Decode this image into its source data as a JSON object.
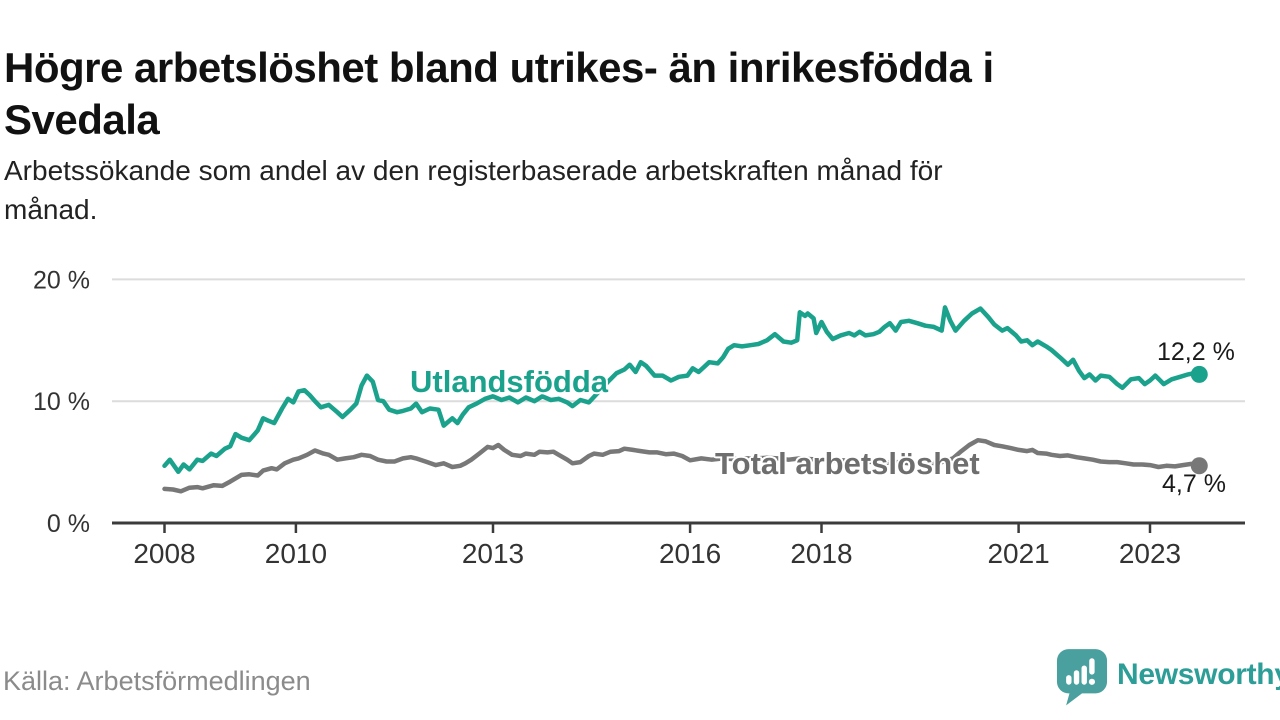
{
  "header": {
    "title": "Högre arbetslöshet bland utrikes- än inrikesfödda i Svedala",
    "title_lines": [
      "Högre arbetslöshet bland utrikes- än inrikesfödda i",
      "Svedala"
    ],
    "subtitle": "Arbetssökande som andel av den registerbaserade arbetskraften månad för månad.",
    "subtitle_lines": [
      "Arbetssökande som andel av den registerbaserade arbetskraften månad för",
      "månad."
    ]
  },
  "footer": {
    "source": "Källa: Arbetsförmedlingen",
    "brand": "Newsworthy",
    "logo_icon": "newsworthy-speech-bubble-bar-chart"
  },
  "colors": {
    "teal_line": "#1ba28c",
    "gray_line": "#787878",
    "axis": "#3b3b3b",
    "gridline": "#dcdcdc",
    "tick_label": "#333333",
    "value_label": "#1a1a1a",
    "series_label_gray": "#6e6e6e",
    "source_text": "#8b8b8b",
    "logo_teal": "#4aa09e",
    "brand_text": "#2c9d97"
  },
  "chart_data": {
    "type": "line",
    "title": "Högre arbetslöshet bland utrikes- än inrikesfödda i Svedala",
    "subtitle": "Arbetssökande som andel av den registerbaserade arbetskraften månad för månad.",
    "x_unit": "decimal_year_monthly",
    "y_unit": "percent",
    "x_range": [
      2008,
      2023.75
    ],
    "y_range": [
      0,
      21.3
    ],
    "grid": "horizontal_only",
    "legend": "inline_labels_on_lines",
    "x_ticks": [
      {
        "value": 2008,
        "label": "2008"
      },
      {
        "value": 2010,
        "label": "2010"
      },
      {
        "value": 2013,
        "label": "2013"
      },
      {
        "value": 2016,
        "label": "2016"
      },
      {
        "value": 2018,
        "label": "2018"
      },
      {
        "value": 2021,
        "label": "2021"
      },
      {
        "value": 2023,
        "label": "2023"
      }
    ],
    "y_ticks": [
      {
        "value": 0,
        "label": "0 %"
      },
      {
        "value": 10,
        "label": "10 %"
      },
      {
        "value": 20,
        "label": "20 %"
      }
    ],
    "series": [
      {
        "name": "Utlandsfödda",
        "color": "#1ba28c",
        "end_label": "12,2 %",
        "end_value": 12.2,
        "points": [
          [
            2008.0,
            4.7
          ],
          [
            2008.08,
            5.2
          ],
          [
            2008.21,
            4.2
          ],
          [
            2008.29,
            4.8
          ],
          [
            2008.38,
            4.4
          ],
          [
            2008.5,
            5.2
          ],
          [
            2008.58,
            5.1
          ],
          [
            2008.71,
            5.7
          ],
          [
            2008.79,
            5.5
          ],
          [
            2008.92,
            6.1
          ],
          [
            2009.0,
            6.3
          ],
          [
            2009.08,
            7.3
          ],
          [
            2009.17,
            7.0
          ],
          [
            2009.29,
            6.8
          ],
          [
            2009.42,
            7.6
          ],
          [
            2009.5,
            8.6
          ],
          [
            2009.58,
            8.4
          ],
          [
            2009.67,
            8.2
          ],
          [
            2009.79,
            9.4
          ],
          [
            2009.88,
            10.2
          ],
          [
            2009.96,
            9.9
          ],
          [
            2010.04,
            10.8
          ],
          [
            2010.13,
            10.9
          ],
          [
            2010.21,
            10.5
          ],
          [
            2010.29,
            10.0
          ],
          [
            2010.38,
            9.5
          ],
          [
            2010.5,
            9.7
          ],
          [
            2010.63,
            9.1
          ],
          [
            2010.71,
            8.7
          ],
          [
            2010.83,
            9.3
          ],
          [
            2010.92,
            9.8
          ],
          [
            2011.0,
            11.3
          ],
          [
            2011.08,
            12.1
          ],
          [
            2011.17,
            11.6
          ],
          [
            2011.25,
            10.1
          ],
          [
            2011.33,
            10.0
          ],
          [
            2011.42,
            9.3
          ],
          [
            2011.54,
            9.1
          ],
          [
            2011.63,
            9.2
          ],
          [
            2011.75,
            9.4
          ],
          [
            2011.83,
            9.8
          ],
          [
            2011.92,
            9.1
          ],
          [
            2012.04,
            9.4
          ],
          [
            2012.17,
            9.3
          ],
          [
            2012.25,
            8.0
          ],
          [
            2012.38,
            8.6
          ],
          [
            2012.46,
            8.2
          ],
          [
            2012.54,
            8.9
          ],
          [
            2012.63,
            9.5
          ],
          [
            2012.75,
            9.8
          ],
          [
            2012.88,
            10.2
          ],
          [
            2013.0,
            10.4
          ],
          [
            2013.13,
            10.1
          ],
          [
            2013.25,
            10.3
          ],
          [
            2013.38,
            9.9
          ],
          [
            2013.5,
            10.3
          ],
          [
            2013.63,
            10.0
          ],
          [
            2013.75,
            10.4
          ],
          [
            2013.88,
            10.1
          ],
          [
            2014.0,
            10.2
          ],
          [
            2014.13,
            9.9
          ],
          [
            2014.21,
            9.6
          ],
          [
            2014.33,
            10.1
          ],
          [
            2014.46,
            9.9
          ],
          [
            2014.58,
            10.6
          ],
          [
            2014.75,
            11.6
          ],
          [
            2014.88,
            12.3
          ],
          [
            2015.0,
            12.6
          ],
          [
            2015.08,
            13.0
          ],
          [
            2015.17,
            12.4
          ],
          [
            2015.25,
            13.2
          ],
          [
            2015.33,
            12.9
          ],
          [
            2015.46,
            12.1
          ],
          [
            2015.58,
            12.1
          ],
          [
            2015.71,
            11.7
          ],
          [
            2015.83,
            12.0
          ],
          [
            2015.96,
            12.1
          ],
          [
            2016.04,
            12.7
          ],
          [
            2016.13,
            12.4
          ],
          [
            2016.21,
            12.8
          ],
          [
            2016.29,
            13.2
          ],
          [
            2016.42,
            13.1
          ],
          [
            2016.5,
            13.6
          ],
          [
            2016.58,
            14.3
          ],
          [
            2016.67,
            14.6
          ],
          [
            2016.79,
            14.5
          ],
          [
            2016.92,
            14.6
          ],
          [
            2017.04,
            14.7
          ],
          [
            2017.17,
            15.0
          ],
          [
            2017.29,
            15.5
          ],
          [
            2017.42,
            14.9
          ],
          [
            2017.54,
            14.8
          ],
          [
            2017.63,
            15.0
          ],
          [
            2017.67,
            17.3
          ],
          [
            2017.75,
            17.0
          ],
          [
            2017.79,
            17.2
          ],
          [
            2017.88,
            16.8
          ],
          [
            2017.92,
            15.6
          ],
          [
            2018.0,
            16.5
          ],
          [
            2018.08,
            15.7
          ],
          [
            2018.17,
            15.1
          ],
          [
            2018.29,
            15.4
          ],
          [
            2018.42,
            15.6
          ],
          [
            2018.5,
            15.4
          ],
          [
            2018.58,
            15.7
          ],
          [
            2018.67,
            15.4
          ],
          [
            2018.79,
            15.5
          ],
          [
            2018.88,
            15.7
          ],
          [
            2018.96,
            16.1
          ],
          [
            2019.04,
            16.4
          ],
          [
            2019.13,
            15.8
          ],
          [
            2019.21,
            16.5
          ],
          [
            2019.33,
            16.6
          ],
          [
            2019.46,
            16.4
          ],
          [
            2019.58,
            16.2
          ],
          [
            2019.71,
            16.1
          ],
          [
            2019.83,
            15.8
          ],
          [
            2019.88,
            17.7
          ],
          [
            2019.96,
            16.6
          ],
          [
            2020.04,
            15.8
          ],
          [
            2020.17,
            16.6
          ],
          [
            2020.29,
            17.2
          ],
          [
            2020.42,
            17.6
          ],
          [
            2020.54,
            16.9
          ],
          [
            2020.63,
            16.3
          ],
          [
            2020.75,
            15.8
          ],
          [
            2020.83,
            16.0
          ],
          [
            2020.96,
            15.4
          ],
          [
            2021.04,
            14.9
          ],
          [
            2021.13,
            15.0
          ],
          [
            2021.21,
            14.6
          ],
          [
            2021.29,
            14.9
          ],
          [
            2021.42,
            14.5
          ],
          [
            2021.5,
            14.2
          ],
          [
            2021.63,
            13.6
          ],
          [
            2021.75,
            13.0
          ],
          [
            2021.83,
            13.4
          ],
          [
            2021.92,
            12.5
          ],
          [
            2022.0,
            11.9
          ],
          [
            2022.08,
            12.2
          ],
          [
            2022.17,
            11.7
          ],
          [
            2022.25,
            12.1
          ],
          [
            2022.38,
            12.0
          ],
          [
            2022.5,
            11.4
          ],
          [
            2022.58,
            11.1
          ],
          [
            2022.71,
            11.8
          ],
          [
            2022.83,
            11.9
          ],
          [
            2022.92,
            11.4
          ],
          [
            2023.0,
            11.7
          ],
          [
            2023.08,
            12.1
          ],
          [
            2023.21,
            11.4
          ],
          [
            2023.33,
            11.8
          ],
          [
            2023.46,
            12.0
          ],
          [
            2023.58,
            12.2
          ],
          [
            2023.67,
            12.3
          ],
          [
            2023.75,
            12.2
          ]
        ]
      },
      {
        "name": "Total arbetslöshet",
        "color": "#787878",
        "end_label": "4,7 %",
        "end_value": 4.7,
        "points": [
          [
            2008.0,
            2.8
          ],
          [
            2008.13,
            2.75
          ],
          [
            2008.25,
            2.6
          ],
          [
            2008.38,
            2.9
          ],
          [
            2008.5,
            2.95
          ],
          [
            2008.58,
            2.85
          ],
          [
            2008.75,
            3.1
          ],
          [
            2008.88,
            3.05
          ],
          [
            2009.0,
            3.4
          ],
          [
            2009.17,
            3.95
          ],
          [
            2009.29,
            4.0
          ],
          [
            2009.42,
            3.9
          ],
          [
            2009.5,
            4.3
          ],
          [
            2009.63,
            4.5
          ],
          [
            2009.71,
            4.4
          ],
          [
            2009.83,
            4.9
          ],
          [
            2009.96,
            5.2
          ],
          [
            2010.04,
            5.3
          ],
          [
            2010.17,
            5.6
          ],
          [
            2010.29,
            5.95
          ],
          [
            2010.42,
            5.7
          ],
          [
            2010.5,
            5.6
          ],
          [
            2010.63,
            5.2
          ],
          [
            2010.75,
            5.3
          ],
          [
            2010.88,
            5.4
          ],
          [
            2011.0,
            5.6
          ],
          [
            2011.13,
            5.5
          ],
          [
            2011.25,
            5.2
          ],
          [
            2011.38,
            5.05
          ],
          [
            2011.5,
            5.05
          ],
          [
            2011.63,
            5.3
          ],
          [
            2011.75,
            5.4
          ],
          [
            2011.83,
            5.3
          ],
          [
            2012.0,
            5.0
          ],
          [
            2012.13,
            4.75
          ],
          [
            2012.25,
            4.9
          ],
          [
            2012.38,
            4.6
          ],
          [
            2012.5,
            4.7
          ],
          [
            2012.58,
            4.9
          ],
          [
            2012.67,
            5.2
          ],
          [
            2012.79,
            5.7
          ],
          [
            2012.92,
            6.25
          ],
          [
            2013.0,
            6.15
          ],
          [
            2013.08,
            6.4
          ],
          [
            2013.17,
            6.0
          ],
          [
            2013.29,
            5.6
          ],
          [
            2013.42,
            5.5
          ],
          [
            2013.5,
            5.7
          ],
          [
            2013.63,
            5.6
          ],
          [
            2013.71,
            5.85
          ],
          [
            2013.83,
            5.8
          ],
          [
            2013.92,
            5.85
          ],
          [
            2014.0,
            5.6
          ],
          [
            2014.13,
            5.2
          ],
          [
            2014.21,
            4.9
          ],
          [
            2014.33,
            5.0
          ],
          [
            2014.46,
            5.5
          ],
          [
            2014.54,
            5.7
          ],
          [
            2014.67,
            5.6
          ],
          [
            2014.79,
            5.85
          ],
          [
            2014.92,
            5.9
          ],
          [
            2015.0,
            6.1
          ],
          [
            2015.13,
            6.0
          ],
          [
            2015.25,
            5.9
          ],
          [
            2015.38,
            5.8
          ],
          [
            2015.5,
            5.8
          ],
          [
            2015.63,
            5.65
          ],
          [
            2015.75,
            5.7
          ],
          [
            2015.88,
            5.5
          ],
          [
            2016.0,
            5.15
          ],
          [
            2016.17,
            5.3
          ],
          [
            2016.33,
            5.2
          ],
          [
            2016.5,
            5.3
          ],
          [
            2016.67,
            5.25
          ],
          [
            2016.83,
            5.3
          ],
          [
            2017.0,
            5.3
          ],
          [
            2017.17,
            5.35
          ],
          [
            2017.33,
            5.3
          ],
          [
            2017.5,
            5.2
          ],
          [
            2017.67,
            5.3
          ],
          [
            2017.83,
            5.25
          ],
          [
            2018.0,
            5.2
          ],
          [
            2018.17,
            5.1
          ],
          [
            2018.33,
            5.15
          ],
          [
            2018.5,
            5.05
          ],
          [
            2018.67,
            5.0
          ],
          [
            2018.83,
            5.05
          ],
          [
            2019.0,
            4.95
          ],
          [
            2019.17,
            5.0
          ],
          [
            2019.33,
            4.9
          ],
          [
            2019.5,
            4.85
          ],
          [
            2019.67,
            4.9
          ],
          [
            2019.83,
            5.0
          ],
          [
            2020.0,
            5.3
          ],
          [
            2020.13,
            5.9
          ],
          [
            2020.25,
            6.4
          ],
          [
            2020.38,
            6.8
          ],
          [
            2020.5,
            6.7
          ],
          [
            2020.63,
            6.4
          ],
          [
            2020.75,
            6.3
          ],
          [
            2020.88,
            6.15
          ],
          [
            2021.0,
            6.0
          ],
          [
            2021.13,
            5.9
          ],
          [
            2021.21,
            6.0
          ],
          [
            2021.29,
            5.75
          ],
          [
            2021.42,
            5.7
          ],
          [
            2021.5,
            5.6
          ],
          [
            2021.63,
            5.5
          ],
          [
            2021.75,
            5.55
          ],
          [
            2021.88,
            5.4
          ],
          [
            2022.0,
            5.3
          ],
          [
            2022.13,
            5.2
          ],
          [
            2022.25,
            5.05
          ],
          [
            2022.38,
            5.0
          ],
          [
            2022.5,
            5.0
          ],
          [
            2022.63,
            4.9
          ],
          [
            2022.75,
            4.8
          ],
          [
            2022.88,
            4.8
          ],
          [
            2023.0,
            4.75
          ],
          [
            2023.13,
            4.6
          ],
          [
            2023.25,
            4.7
          ],
          [
            2023.38,
            4.65
          ],
          [
            2023.5,
            4.75
          ],
          [
            2023.63,
            4.85
          ],
          [
            2023.75,
            4.7
          ]
        ]
      }
    ]
  }
}
